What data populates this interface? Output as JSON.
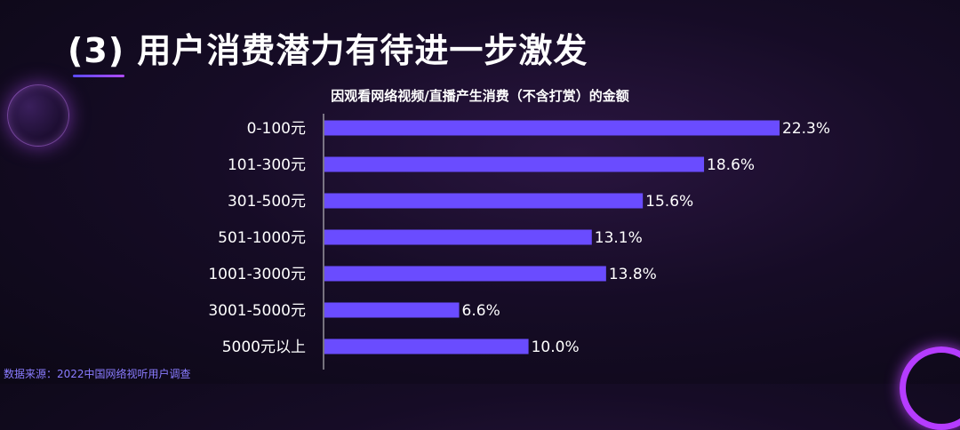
{
  "slide": {
    "title": "(3) 用户消费潜力有待进一步激发"
  },
  "source_note": "数据来源：2022中国网络视听用户调查",
  "colors": {
    "bar": "#6a4cff",
    "accent": "#b53cff"
  },
  "chart_data": {
    "type": "bar",
    "orientation": "horizontal",
    "title": "因观看网络视频/直播产生消费（不含打赏）的金额",
    "categories": [
      "0-100元",
      "101-300元",
      "301-500元",
      "501-1000元",
      "1001-3000元",
      "3001-5000元",
      "5000元以上"
    ],
    "values": [
      22.3,
      18.6,
      15.6,
      13.1,
      13.8,
      6.6,
      10.0
    ],
    "value_labels": [
      "22.3%",
      "18.6%",
      "15.6%",
      "13.1%",
      "13.8%",
      "6.6%",
      "10.0%"
    ],
    "unit": "%",
    "grid": false,
    "legend": "none"
  }
}
